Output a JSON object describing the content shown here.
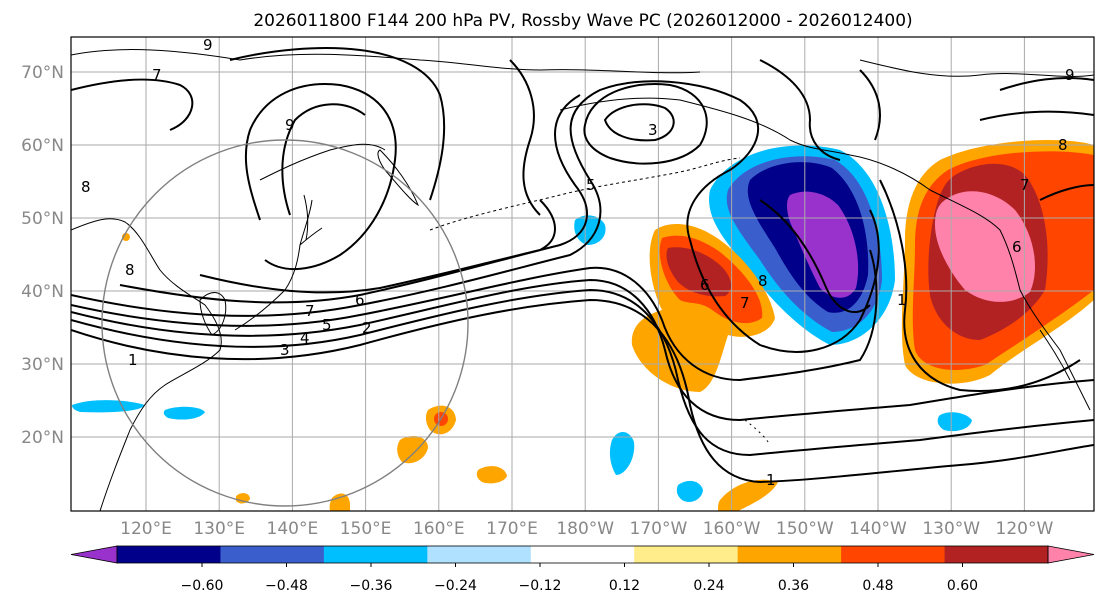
{
  "title": "2026011800 F144 200 hPa PV, Rossby Wave PC (2026012000 - 2026012400)",
  "lat_labels": [
    "70°N",
    "60°N",
    "50°N",
    "40°N",
    "30°N",
    "20°N"
  ],
  "lon_labels": [
    "120°E",
    "130°E",
    "140°E",
    "150°E",
    "160°E",
    "170°E",
    "180°W",
    "170°W",
    "160°W",
    "150°W",
    "140°W",
    "130°W",
    "120°W"
  ],
  "colorbar": {
    "ticks": [
      "−0.60",
      "−0.48",
      "−0.36",
      "−0.24",
      "−0.12",
      "0.12",
      "0.24",
      "0.36",
      "0.48",
      "0.60"
    ],
    "colors": [
      "#9932cc",
      "#00008b",
      "#3a5fcd",
      "#00bfff",
      "#b0e2ff",
      "#ffffff",
      "#ffec8b",
      "#ffa500",
      "#ff4500",
      "#b22222",
      "#ff82ab"
    ]
  },
  "contour_labels": [
    "1",
    "2",
    "3",
    "4",
    "5",
    "6",
    "7",
    "8",
    "9",
    "5",
    "3",
    "6",
    "7",
    "8",
    "1",
    "7",
    "6",
    "1",
    "9",
    "8",
    "9",
    "7",
    "8"
  ]
}
